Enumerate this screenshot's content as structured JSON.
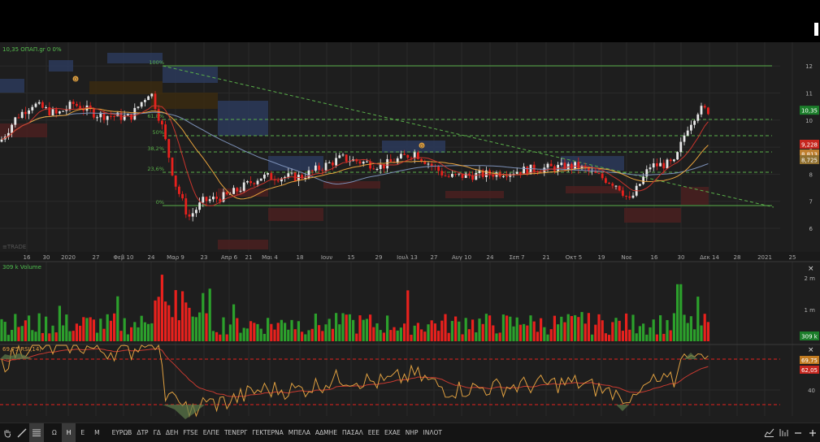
{
  "price_pane": {
    "title": "10,35 ΟΠΑΠ.gr 0 0%",
    "watermark": "≡TRADE",
    "y_ticks": [
      "12",
      "11",
      "10",
      "9",
      "8",
      "7",
      "6"
    ],
    "last_price": "10,35",
    "ma_badges": [
      "9,228",
      "8,813",
      "8,725"
    ],
    "fib_labels": [
      "100%",
      "61,8%",
      "50%",
      "38,2%",
      "23,6%",
      "0%"
    ],
    "x_ticks": [
      "16",
      "30",
      "2020",
      "27",
      "Φεβ 10",
      "24",
      "Μαρ 9",
      "23",
      "Απρ 6",
      "21",
      "Μαι 4",
      "18",
      "Ιουν",
      "15",
      "29",
      "Ιουλ 13",
      "27",
      "Αυγ 10",
      "24",
      "Σεπ 7",
      "21",
      "Οκτ 5",
      "19",
      "Νοε",
      "16",
      "30",
      "Δεκ 14",
      "28",
      "2021",
      "25"
    ],
    "marker": "D"
  },
  "volume_pane": {
    "title": "309 k Volume",
    "y_ticks": [
      "2 m",
      "1 m"
    ],
    "last_volume": "309 k",
    "close_label": "×"
  },
  "rsi_pane": {
    "title": "69,75 RSI(14)",
    "y_ticks": [
      "40"
    ],
    "rsi_value": "69,75",
    "signal_value": "62,05",
    "close_label": "×"
  },
  "toolbar": {
    "periods": [
      "Ω",
      "Η",
      "Ε",
      "Μ"
    ],
    "active_period": "Η",
    "indices": [
      "ΕΥΡΩΒ",
      "ΔΤΡ",
      "ΓΔ",
      "ΔΕΗ",
      "FTSE",
      "ΕΛΠΕ",
      "ΤΕΝΕΡΓ",
      "ΓΕΚΤΕΡΝΑ",
      "ΜΠΕΛΑ",
      "ΑΔΜΗΕ",
      "ΠΑΣΑΛ",
      "ΕΕΕ",
      "ΕΧΑΕ",
      "ΝΗΡ",
      "ΙΝΛΟΤ"
    ],
    "left_icons": [
      "hand-icon",
      "draw-line-icon",
      "grid-menu-icon"
    ],
    "right_icons": [
      "chart-type-icon",
      "indicator-icon",
      "zoom-out-icon",
      "zoom-in-icon"
    ]
  },
  "colors": {
    "up": "#2ca02c",
    "down": "#e8211d",
    "fib": "#5ab04a",
    "ma_orange": "#e8a33c",
    "ma_red": "#c8342c",
    "ma_blue": "#7b8fb6",
    "rsi": "#e0a040",
    "rsi_signal": "#c83a30",
    "background": "#1e1e1e"
  }
}
